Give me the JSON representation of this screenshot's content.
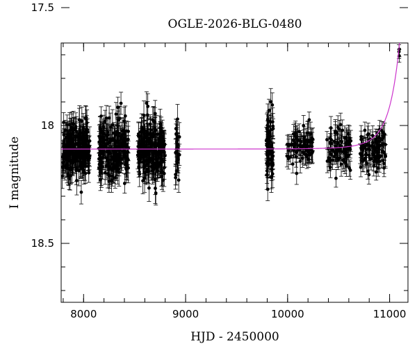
{
  "chart_data": {
    "type": "scatter",
    "title": "OGLE-2026-BLG-0480",
    "xlabel": "HJD - 2450000",
    "ylabel": "I magnitude",
    "xlim": [
      7780,
      11180
    ],
    "ylim": [
      18.75,
      17.65
    ],
    "y_inverted": true,
    "x_ticks": [
      8000,
      9000,
      10000,
      11000
    ],
    "y_ticks": [
      17.5,
      18,
      18.5
    ],
    "x_minor_step": 200,
    "y_minor_step": 0.1,
    "grid": false,
    "colors": {
      "points": "#000000",
      "model": "#cc33cc"
    },
    "model": {
      "baseline_mag": 18.1,
      "t0": 11230,
      "tE": 180,
      "u0": 0.35
    },
    "observations": [
      {
        "name": "season-1",
        "x_start": 7790,
        "x_end": 8060,
        "n_points": 220,
        "mean_mag": 18.1,
        "scatter": 0.06,
        "error": 0.05
      },
      {
        "name": "season-2",
        "x_start": 8150,
        "x_end": 8440,
        "n_points": 200,
        "mean_mag": 18.1,
        "scatter": 0.06,
        "error": 0.05
      },
      {
        "name": "season-3",
        "x_start": 8530,
        "x_end": 8800,
        "n_points": 200,
        "mean_mag": 18.1,
        "scatter": 0.065,
        "error": 0.05
      },
      {
        "name": "season-4",
        "x_start": 8900,
        "x_end": 8940,
        "n_points": 25,
        "mean_mag": 18.1,
        "scatter": 0.07,
        "error": 0.05
      },
      {
        "name": "season-5",
        "x_start": 9790,
        "x_end": 9860,
        "n_points": 60,
        "mean_mag": 18.11,
        "scatter": 0.08,
        "error": 0.05
      },
      {
        "name": "season-6",
        "x_start": 9990,
        "x_end": 10250,
        "n_points": 80,
        "mean_mag": 18.09,
        "scatter": 0.04,
        "error": 0.04
      },
      {
        "name": "season-7",
        "x_start": 10380,
        "x_end": 10620,
        "n_points": 80,
        "mean_mag": 18.1,
        "scatter": 0.04,
        "error": 0.04
      },
      {
        "name": "season-8",
        "x_start": 10710,
        "x_end": 10960,
        "n_points": 90,
        "mean_mag": 18.1,
        "scatter": 0.045,
        "error": 0.04
      },
      {
        "name": "season-9",
        "x_start": 11090,
        "x_end": 11175,
        "n_points": 30,
        "follow_model": true,
        "scatter": 0.03,
        "error": 0.03
      }
    ]
  }
}
